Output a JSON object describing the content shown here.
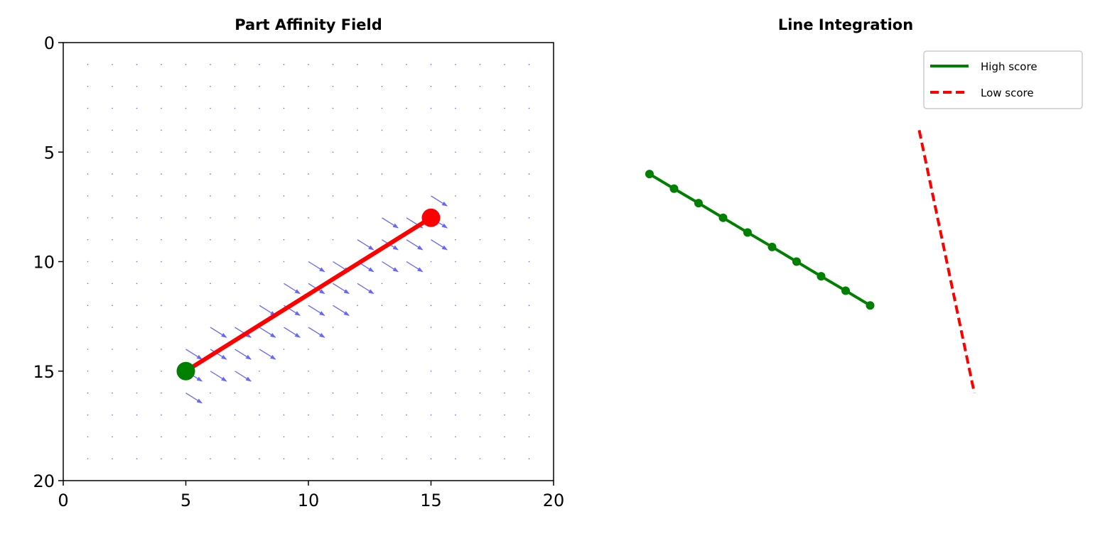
{
  "chart_data": [
    {
      "type": "quiver",
      "title": "Part Affinity Field",
      "xlabel": "",
      "ylabel": "",
      "xlim": [
        0,
        20
      ],
      "ylim": [
        20,
        0
      ],
      "y_inverted": true,
      "xticks": [
        "0",
        "5",
        "10",
        "15",
        "20"
      ],
      "yticks": [
        "0",
        "5",
        "10",
        "15",
        "20"
      ],
      "grid": false,
      "field": {
        "grid_range": [
          1,
          19
        ],
        "grid_step": 1,
        "color": "#6666ff",
        "vector": [
          0.819,
          0.573
        ],
        "vector_length": 0.8,
        "band_halfwidth": 1.3,
        "segment_from": [
          5,
          15
        ],
        "segment_to": [
          15,
          8
        ]
      },
      "limb": {
        "from": [
          5,
          15
        ],
        "to": [
          15,
          8
        ],
        "color": "#ff0000",
        "start_color": "#008000",
        "end_color": "#ff0000"
      }
    },
    {
      "type": "line",
      "title": "Line Integration",
      "axis": "off",
      "legend_position": "top-right",
      "series": [
        {
          "name": "High score",
          "color": "#008000",
          "style": "solid",
          "markers": true,
          "x": [
            2,
            3,
            4,
            5,
            6,
            7,
            8,
            9,
            10,
            11
          ],
          "y": [
            6,
            6.67,
            7.33,
            8,
            8.67,
            9.33,
            10,
            10.67,
            11.33,
            12
          ]
        },
        {
          "name": "Low score",
          "color": "#ff0000",
          "style": "dashed",
          "markers": false,
          "x": [
            13,
            15.25
          ],
          "y": [
            4,
            16
          ]
        }
      ]
    }
  ]
}
